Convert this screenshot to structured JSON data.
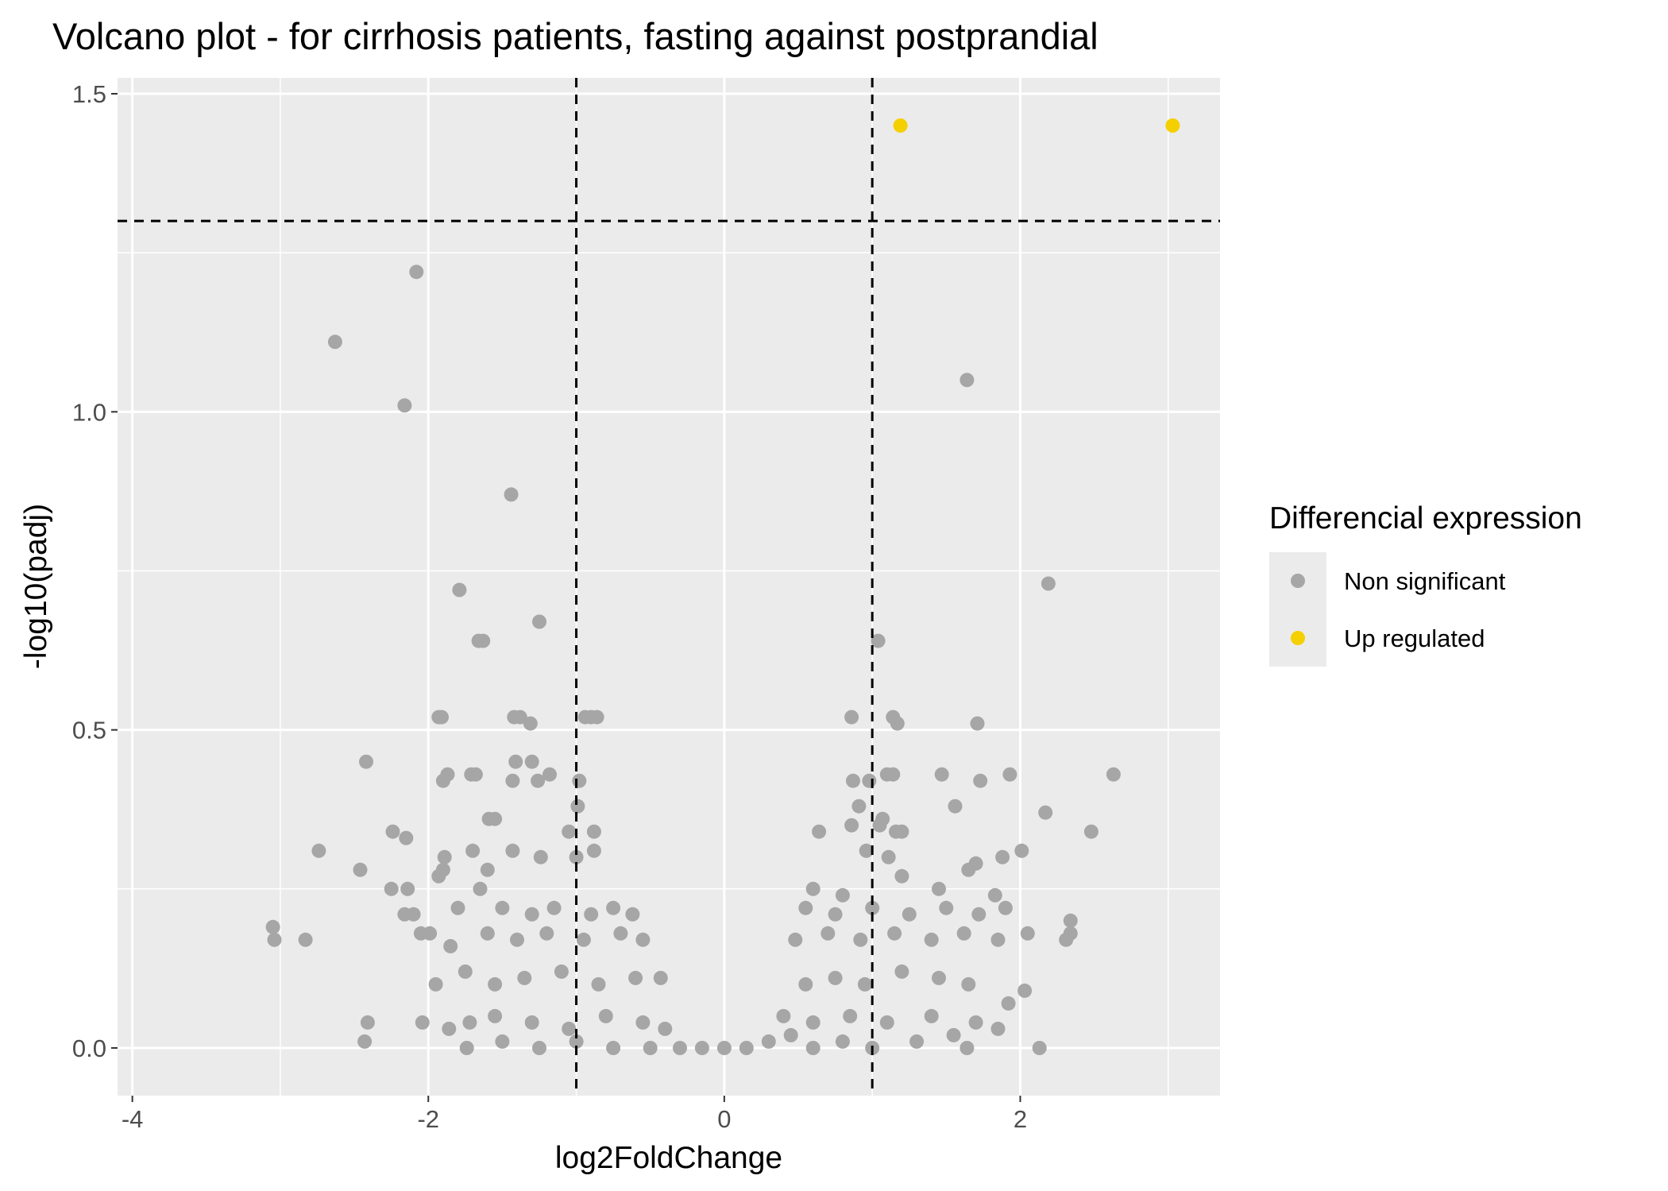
{
  "chart_data": {
    "type": "scatter",
    "title": "Volcano plot - for cirrhosis patients, fasting against postprandial",
    "xlabel": "log2FoldChange",
    "ylabel": "-log10(padj)",
    "xlim": [
      -4.1,
      3.35
    ],
    "ylim": [
      -0.075,
      1.525
    ],
    "x_ticks": [
      -4,
      -2,
      0,
      2
    ],
    "x_tick_labels": [
      "-4",
      "-2",
      "0",
      "2"
    ],
    "y_ticks": [
      0.0,
      0.5,
      1.0,
      1.5
    ],
    "y_tick_labels": [
      "0.0",
      "0.5",
      "1.0",
      "1.5"
    ],
    "grid": true,
    "background": "#ebebeb",
    "reference_lines": {
      "x": [
        -1,
        1
      ],
      "y": 1.3
    },
    "legend": {
      "title": "Differencial expression",
      "position": "right",
      "entries": [
        {
          "label": "Non significant",
          "color": "#a6a6a6"
        },
        {
          "label": "Up regulated",
          "color": "#f5d000"
        }
      ]
    },
    "series": [
      {
        "name": "Non significant",
        "color": "#a6a6a6",
        "points": [
          [
            -2.08,
            1.22
          ],
          [
            -2.63,
            1.11
          ],
          [
            -2.16,
            1.01
          ],
          [
            -1.44,
            0.87
          ],
          [
            -1.79,
            0.72
          ],
          [
            -1.25,
            0.67
          ],
          [
            -1.66,
            0.64
          ],
          [
            -1.63,
            0.64
          ],
          [
            -1.93,
            0.52
          ],
          [
            -1.91,
            0.52
          ],
          [
            -1.42,
            0.52
          ],
          [
            -1.38,
            0.52
          ],
          [
            -1.31,
            0.51
          ],
          [
            -0.94,
            0.52
          ],
          [
            -0.9,
            0.52
          ],
          [
            -0.86,
            0.52
          ],
          [
            -2.42,
            0.45
          ],
          [
            -1.87,
            0.43
          ],
          [
            -1.9,
            0.42
          ],
          [
            -1.71,
            0.43
          ],
          [
            -1.68,
            0.43
          ],
          [
            -1.41,
            0.45
          ],
          [
            -1.3,
            0.45
          ],
          [
            -1.43,
            0.42
          ],
          [
            -1.26,
            0.42
          ],
          [
            -1.18,
            0.43
          ],
          [
            -0.98,
            0.42
          ],
          [
            -0.99,
            0.38
          ],
          [
            -1.59,
            0.36
          ],
          [
            -1.55,
            0.36
          ],
          [
            -2.24,
            0.34
          ],
          [
            -2.15,
            0.33
          ],
          [
            -1.05,
            0.34
          ],
          [
            -0.88,
            0.34
          ],
          [
            -2.74,
            0.31
          ],
          [
            -2.46,
            0.28
          ],
          [
            -1.89,
            0.3
          ],
          [
            -1.9,
            0.28
          ],
          [
            -1.7,
            0.31
          ],
          [
            -1.43,
            0.31
          ],
          [
            -1.24,
            0.3
          ],
          [
            -1.0,
            0.3
          ],
          [
            -0.88,
            0.31
          ],
          [
            -1.6,
            0.28
          ],
          [
            -2.25,
            0.25
          ],
          [
            -2.14,
            0.25
          ],
          [
            -1.93,
            0.27
          ],
          [
            -1.65,
            0.25
          ],
          [
            -2.16,
            0.21
          ],
          [
            -2.1,
            0.21
          ],
          [
            -1.8,
            0.22
          ],
          [
            -1.5,
            0.22
          ],
          [
            -1.3,
            0.21
          ],
          [
            -1.15,
            0.22
          ],
          [
            -0.9,
            0.21
          ],
          [
            -0.75,
            0.22
          ],
          [
            -0.62,
            0.21
          ],
          [
            -3.05,
            0.19
          ],
          [
            -3.04,
            0.17
          ],
          [
            -2.83,
            0.17
          ],
          [
            -2.05,
            0.18
          ],
          [
            -1.99,
            0.18
          ],
          [
            -1.85,
            0.16
          ],
          [
            -1.6,
            0.18
          ],
          [
            -1.4,
            0.17
          ],
          [
            -1.2,
            0.18
          ],
          [
            -0.95,
            0.17
          ],
          [
            -0.7,
            0.18
          ],
          [
            -0.55,
            0.17
          ],
          [
            -1.95,
            0.1
          ],
          [
            -1.75,
            0.12
          ],
          [
            -1.55,
            0.1
          ],
          [
            -1.35,
            0.11
          ],
          [
            -1.1,
            0.12
          ],
          [
            -0.85,
            0.1
          ],
          [
            -0.6,
            0.11
          ],
          [
            -0.43,
            0.11
          ],
          [
            -2.41,
            0.04
          ],
          [
            -2.04,
            0.04
          ],
          [
            -1.86,
            0.03
          ],
          [
            -1.72,
            0.04
          ],
          [
            -1.55,
            0.05
          ],
          [
            -1.3,
            0.04
          ],
          [
            -1.05,
            0.03
          ],
          [
            -0.8,
            0.05
          ],
          [
            -0.55,
            0.04
          ],
          [
            -0.4,
            0.03
          ],
          [
            -2.43,
            0.01
          ],
          [
            -1.74,
            0.0
          ],
          [
            -1.5,
            0.01
          ],
          [
            -1.25,
            0.0
          ],
          [
            -1.0,
            0.01
          ],
          [
            -0.75,
            0.0
          ],
          [
            -0.5,
            0.0
          ],
          [
            -0.3,
            0.0
          ],
          [
            -0.15,
            0.0
          ],
          [
            0.0,
            0.0
          ],
          [
            0.15,
            0.0
          ],
          [
            0.3,
            0.01
          ],
          [
            0.45,
            0.02
          ],
          [
            0.6,
            0.0
          ],
          [
            0.8,
            0.01
          ],
          [
            1.0,
            0.0
          ],
          [
            1.3,
            0.01
          ],
          [
            1.55,
            0.02
          ],
          [
            1.64,
            0.0
          ],
          [
            2.13,
            0.0
          ],
          [
            0.4,
            0.05
          ],
          [
            0.6,
            0.04
          ],
          [
            0.85,
            0.05
          ],
          [
            1.1,
            0.04
          ],
          [
            1.4,
            0.05
          ],
          [
            1.7,
            0.04
          ],
          [
            1.85,
            0.03
          ],
          [
            1.92,
            0.07
          ],
          [
            2.03,
            0.09
          ],
          [
            0.55,
            0.1
          ],
          [
            0.75,
            0.11
          ],
          [
            0.95,
            0.1
          ],
          [
            1.2,
            0.12
          ],
          [
            1.45,
            0.11
          ],
          [
            1.65,
            0.1
          ],
          [
            0.48,
            0.17
          ],
          [
            0.7,
            0.18
          ],
          [
            0.92,
            0.17
          ],
          [
            1.15,
            0.18
          ],
          [
            1.4,
            0.17
          ],
          [
            1.62,
            0.18
          ],
          [
            1.85,
            0.17
          ],
          [
            2.05,
            0.18
          ],
          [
            2.31,
            0.17
          ],
          [
            2.34,
            0.18
          ],
          [
            2.34,
            0.2
          ],
          [
            0.55,
            0.22
          ],
          [
            0.75,
            0.21
          ],
          [
            1.0,
            0.22
          ],
          [
            1.25,
            0.21
          ],
          [
            1.5,
            0.22
          ],
          [
            1.72,
            0.21
          ],
          [
            1.9,
            0.22
          ],
          [
            0.6,
            0.25
          ],
          [
            0.8,
            0.24
          ],
          [
            1.2,
            0.27
          ],
          [
            1.45,
            0.25
          ],
          [
            1.65,
            0.28
          ],
          [
            1.7,
            0.29
          ],
          [
            1.83,
            0.24
          ],
          [
            1.88,
            0.3
          ],
          [
            2.01,
            0.31
          ],
          [
            0.96,
            0.31
          ],
          [
            1.11,
            0.3
          ],
          [
            0.64,
            0.34
          ],
          [
            0.86,
            0.35
          ],
          [
            1.05,
            0.35
          ],
          [
            1.07,
            0.36
          ],
          [
            1.16,
            0.34
          ],
          [
            1.2,
            0.34
          ],
          [
            1.56,
            0.38
          ],
          [
            0.91,
            0.38
          ],
          [
            0.87,
            0.42
          ],
          [
            0.98,
            0.42
          ],
          [
            1.1,
            0.43
          ],
          [
            1.14,
            0.43
          ],
          [
            1.47,
            0.43
          ],
          [
            1.73,
            0.42
          ],
          [
            1.93,
            0.43
          ],
          [
            2.17,
            0.37
          ],
          [
            2.48,
            0.34
          ],
          [
            2.63,
            0.43
          ],
          [
            0.86,
            0.52
          ],
          [
            1.14,
            0.52
          ],
          [
            1.17,
            0.51
          ],
          [
            1.71,
            0.51
          ],
          [
            1.04,
            0.64
          ],
          [
            1.64,
            1.05
          ],
          [
            2.19,
            0.73
          ]
        ]
      },
      {
        "name": "Up regulated",
        "color": "#f5d000",
        "points": [
          [
            1.19,
            1.45
          ],
          [
            3.03,
            1.45
          ]
        ]
      }
    ]
  }
}
